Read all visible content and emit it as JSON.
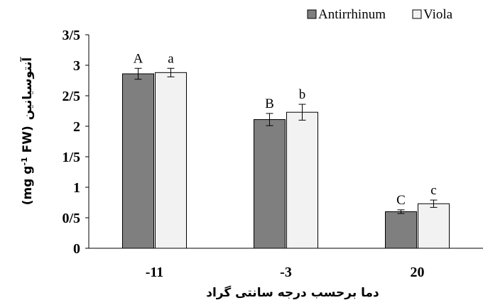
{
  "chart_data": {
    "type": "bar",
    "categories": [
      "-11",
      "-3",
      "20"
    ],
    "series": [
      {
        "name": "Antirrhinum",
        "values": [
          2.86,
          2.11,
          0.6
        ],
        "errors": [
          0.09,
          0.1,
          0.03
        ],
        "letters": [
          "A",
          "B",
          "C"
        ],
        "color": "#7f7f7f"
      },
      {
        "name": "Viola",
        "values": [
          2.88,
          2.23,
          0.73
        ],
        "errors": [
          0.07,
          0.13,
          0.06
        ],
        "letters": [
          "a",
          "b",
          "c"
        ],
        "color": "#f2f2f2"
      }
    ],
    "ylim": [
      0,
      3.5
    ],
    "yticks": [
      "0",
      "0/5",
      "1",
      "1/5",
      "2",
      "2/5",
      "3",
      "3/5"
    ],
    "ylabel_fa": "آنتوسیانین",
    "ylabel_unit": "(mg g",
    "ylabel_sup": "-1",
    "ylabel_unit2": " FW)",
    "xlabel": "دما برحسب درجه سانتی گراد",
    "grid": false,
    "legend_position": "top-right"
  }
}
